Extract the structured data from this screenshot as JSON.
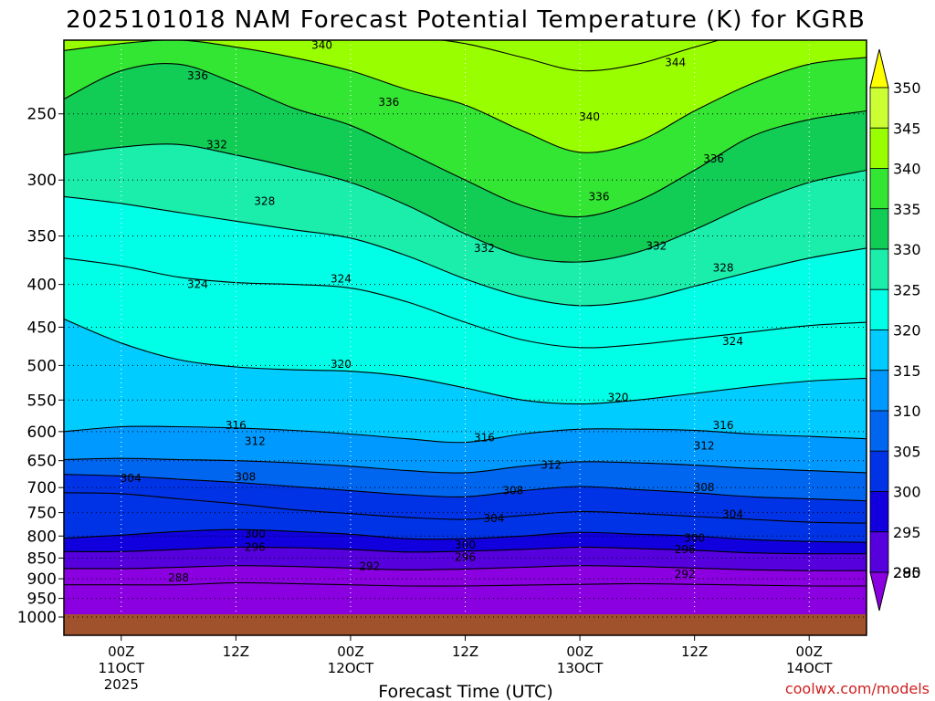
{
  "chart_data": {
    "type": "heatmap",
    "title": "2025101018 NAM Forecast Potential Temperature (K) for KGRB",
    "xlabel": "Forecast Time (UTC)",
    "ylabel": "",
    "credit": "coolwx.com/models",
    "y_ticks": [
      "250",
      "300",
      "350",
      "400",
      "450",
      "500",
      "550",
      "600",
      "650",
      "700",
      "750",
      "800",
      "850",
      "900",
      "950",
      "1000"
    ],
    "x_ticks": [
      {
        "hour": 6,
        "lines": [
          "00Z",
          "11OCT",
          "2025"
        ]
      },
      {
        "hour": 18,
        "lines": [
          "12Z",
          "",
          ""
        ]
      },
      {
        "hour": 30,
        "lines": [
          "00Z",
          "12OCT",
          ""
        ]
      },
      {
        "hour": 42,
        "lines": [
          "12Z",
          "",
          ""
        ]
      },
      {
        "hour": 54,
        "lines": [
          "00Z",
          "13OCT",
          ""
        ]
      },
      {
        "hour": 66,
        "lines": [
          "12Z",
          "",
          ""
        ]
      },
      {
        "hour": 78,
        "lines": [
          "00Z",
          "14OCT",
          ""
        ]
      }
    ],
    "x_range_hours": [
      0,
      84
    ],
    "y_range_hpa": [
      1000,
      200
    ],
    "colorbar": {
      "levels": [
        "350",
        "345",
        "340",
        "335",
        "330",
        "325",
        "320",
        "315",
        "310",
        "305",
        "300",
        "295",
        "290",
        "285"
      ],
      "colors": [
        "#ffff00",
        "#ccff33",
        "#99ff00",
        "#33e633",
        "#11cc55",
        "#1aeeaa",
        "#00ffe6",
        "#00ccff",
        "#0099ff",
        "#0066f0",
        "#0033e6",
        "#1100dd",
        "#5500dd",
        "#8a00e0"
      ]
    },
    "series": [
      {
        "theta": 288,
        "p": [
          915,
          915,
          915,
          910,
          912,
          915,
          918,
          918,
          916,
          914,
          912,
          914,
          916,
          918,
          918
        ]
      },
      {
        "theta": 292,
        "p": [
          875,
          875,
          872,
          868,
          870,
          874,
          878,
          876,
          872,
          868,
          870,
          874,
          878,
          880,
          880
        ]
      },
      {
        "theta": 296,
        "p": [
          835,
          835,
          830,
          825,
          826,
          830,
          836,
          834,
          830,
          825,
          828,
          832,
          838,
          840,
          840
        ]
      },
      {
        "theta": 300,
        "p": [
          805,
          798,
          790,
          786,
          790,
          796,
          806,
          806,
          800,
          792,
          796,
          800,
          808,
          812,
          814
        ]
      },
      {
        "theta": 304,
        "p": [
          710,
          712,
          722,
          732,
          744,
          752,
          760,
          764,
          756,
          748,
          752,
          758,
          764,
          770,
          772
        ]
      },
      {
        "theta": 308,
        "p": [
          675,
          678,
          684,
          690,
          698,
          706,
          714,
          718,
          706,
          698,
          704,
          710,
          718,
          722,
          726
        ]
      },
      {
        "theta": 312,
        "p": [
          648,
          646,
          648,
          650,
          654,
          660,
          668,
          672,
          660,
          652,
          654,
          658,
          664,
          668,
          672
        ]
      },
      {
        "theta": 316,
        "p": [
          600,
          592,
          592,
          594,
          598,
          604,
          612,
          618,
          604,
          596,
          596,
          598,
          604,
          608,
          612
        ]
      },
      {
        "theta": 320,
        "p": [
          440,
          470,
          492,
          502,
          506,
          508,
          516,
          532,
          550,
          556,
          550,
          540,
          530,
          522,
          518
        ]
      },
      {
        "theta": 324,
        "p": [
          372,
          380,
          392,
          398,
          400,
          404,
          420,
          444,
          466,
          476,
          472,
          464,
          456,
          448,
          444
        ]
      },
      {
        "theta": 328,
        "p": [
          314,
          320,
          328,
          336,
          344,
          352,
          370,
          394,
          414,
          424,
          418,
          402,
          386,
          372,
          362
        ]
      },
      {
        "theta": 332,
        "p": [
          280,
          274,
          272,
          280,
          290,
          302,
          322,
          348,
          370,
          376,
          366,
          344,
          320,
          302,
          292
        ]
      },
      {
        "theta": 336,
        "p": [
          240,
          222,
          218,
          230,
          246,
          258,
          278,
          300,
          322,
          332,
          318,
          292,
          266,
          254,
          248
        ]
      },
      {
        "theta": 340,
        "p": [
          210,
          206,
          204,
          208,
          214,
          222,
          234,
          244,
          262,
          278,
          270,
          248,
          230,
          218,
          214
        ]
      },
      {
        "theta": 344,
        "p": [
          200,
          200,
          200,
          200,
          200,
          200,
          202,
          206,
          214,
          222,
          218,
          208,
          200,
          200,
          200
        ]
      }
    ],
    "label_positions": [
      {
        "text": "336",
        "hour": 14,
        "p": 225
      },
      {
        "text": "340",
        "hour": 27,
        "p": 207
      },
      {
        "text": "336",
        "hour": 34,
        "p": 242
      },
      {
        "text": "332",
        "hour": 16,
        "p": 272
      },
      {
        "text": "328",
        "hour": 21,
        "p": 318
      },
      {
        "text": "332",
        "hour": 44,
        "p": 362
      },
      {
        "text": "344",
        "hour": 64,
        "p": 217
      },
      {
        "text": "340",
        "hour": 55,
        "p": 252
      },
      {
        "text": "336",
        "hour": 56,
        "p": 314
      },
      {
        "text": "336",
        "hour": 68,
        "p": 283
      },
      {
        "text": "332",
        "hour": 62,
        "p": 360
      },
      {
        "text": "328",
        "hour": 69,
        "p": 382
      },
      {
        "text": "324",
        "hour": 14,
        "p": 400
      },
      {
        "text": "324",
        "hour": 29,
        "p": 394
      },
      {
        "text": "324",
        "hour": 70,
        "p": 468
      },
      {
        "text": "320",
        "hour": 29,
        "p": 498
      },
      {
        "text": "320",
        "hour": 58,
        "p": 546
      },
      {
        "text": "316",
        "hour": 18,
        "p": 590
      },
      {
        "text": "316",
        "hour": 44,
        "p": 610
      },
      {
        "text": "316",
        "hour": 69,
        "p": 590
      },
      {
        "text": "312",
        "hour": 20,
        "p": 616
      },
      {
        "text": "312",
        "hour": 51,
        "p": 658
      },
      {
        "text": "312",
        "hour": 67,
        "p": 624
      },
      {
        "text": "308",
        "hour": 19,
        "p": 680
      },
      {
        "text": "308",
        "hour": 47,
        "p": 706
      },
      {
        "text": "308",
        "hour": 67,
        "p": 700
      },
      {
        "text": "304",
        "hour": 7,
        "p": 682
      },
      {
        "text": "304",
        "hour": 45,
        "p": 762
      },
      {
        "text": "304",
        "hour": 70,
        "p": 754
      },
      {
        "text": "300",
        "hour": 20,
        "p": 795
      },
      {
        "text": "300",
        "hour": 42,
        "p": 820
      },
      {
        "text": "300",
        "hour": 66,
        "p": 805
      },
      {
        "text": "296",
        "hour": 20,
        "p": 825
      },
      {
        "text": "296",
        "hour": 42,
        "p": 848
      },
      {
        "text": "296",
        "hour": 65,
        "p": 830
      },
      {
        "text": "292",
        "hour": 32,
        "p": 870
      },
      {
        "text": "292",
        "hour": 65,
        "p": 888
      },
      {
        "text": "288",
        "hour": 12,
        "p": 898
      }
    ]
  }
}
